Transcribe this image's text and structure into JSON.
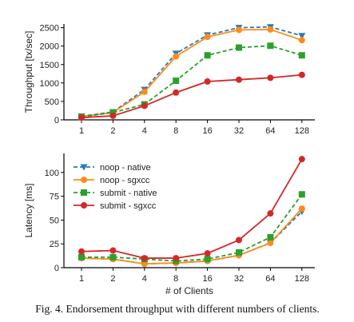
{
  "caption": "Fig. 4.  Endorsement throughput with different numbers of clients.",
  "colors": {
    "noop_native": "#2e78b7",
    "noop_sgxcc": "#ff8c1a",
    "submit_native": "#2ca02c",
    "submit_sgxcc": "#d62728"
  },
  "chart_data": [
    {
      "type": "line",
      "title": "",
      "xlabel": "",
      "ylabel": "Throughput [tx/sec]",
      "categories": [
        "1",
        "2",
        "4",
        "8",
        "16",
        "32",
        "64",
        "128"
      ],
      "ylim": [
        0,
        2600
      ],
      "yticks": [
        0,
        500,
        1000,
        1500,
        2000,
        2500
      ],
      "grid": false,
      "legend": "none",
      "series": [
        {
          "name": "noop - native",
          "key": "noop_native",
          "values": [
            100,
            215,
            820,
            1800,
            2300,
            2500,
            2520,
            2280
          ],
          "marker": "triangle-down",
          "dash": "dashed"
        },
        {
          "name": "noop - sgxcc",
          "key": "noop_sgxcc",
          "values": [
            90,
            200,
            760,
            1720,
            2250,
            2440,
            2450,
            2160
          ],
          "marker": "circle",
          "dash": "solid"
        },
        {
          "name": "submit - native",
          "key": "submit_native",
          "values": [
            80,
            200,
            420,
            1060,
            1750,
            1960,
            2010,
            1750
          ],
          "marker": "square",
          "dash": "dashed"
        },
        {
          "name": "submit - sgxcc",
          "key": "submit_sgxcc",
          "values": [
            60,
            110,
            380,
            740,
            1040,
            1090,
            1140,
            1220
          ],
          "marker": "circle",
          "dash": "solid"
        }
      ]
    },
    {
      "type": "line",
      "title": "",
      "xlabel": "# of Clients",
      "ylabel": "Latency [ms]",
      "categories": [
        "1",
        "2",
        "4",
        "8",
        "16",
        "32",
        "64",
        "128"
      ],
      "ylim": [
        0,
        120
      ],
      "yticks": [
        0,
        25,
        50,
        75,
        100
      ],
      "grid": false,
      "legend": "top-left",
      "series": [
        {
          "name": "noop - native",
          "key": "noop_native",
          "values": [
            10,
            9,
            4,
            5,
            7,
            13,
            26,
            59
          ],
          "marker": "triangle-down",
          "dash": "dashed"
        },
        {
          "name": "noop - sgxcc",
          "key": "noop_sgxcc",
          "values": [
            10,
            9,
            4,
            5,
            7,
            13,
            26,
            62
          ],
          "marker": "circle",
          "dash": "solid"
        },
        {
          "name": "submit - native",
          "key": "submit_native",
          "values": [
            11,
            11,
            9,
            7,
            9,
            16,
            32,
            77
          ],
          "marker": "square",
          "dash": "dashed"
        },
        {
          "name": "submit - sgxcc",
          "key": "submit_sgxcc",
          "values": [
            17,
            18,
            10,
            10,
            15,
            29,
            57,
            114
          ],
          "marker": "circle",
          "dash": "solid"
        }
      ]
    }
  ]
}
